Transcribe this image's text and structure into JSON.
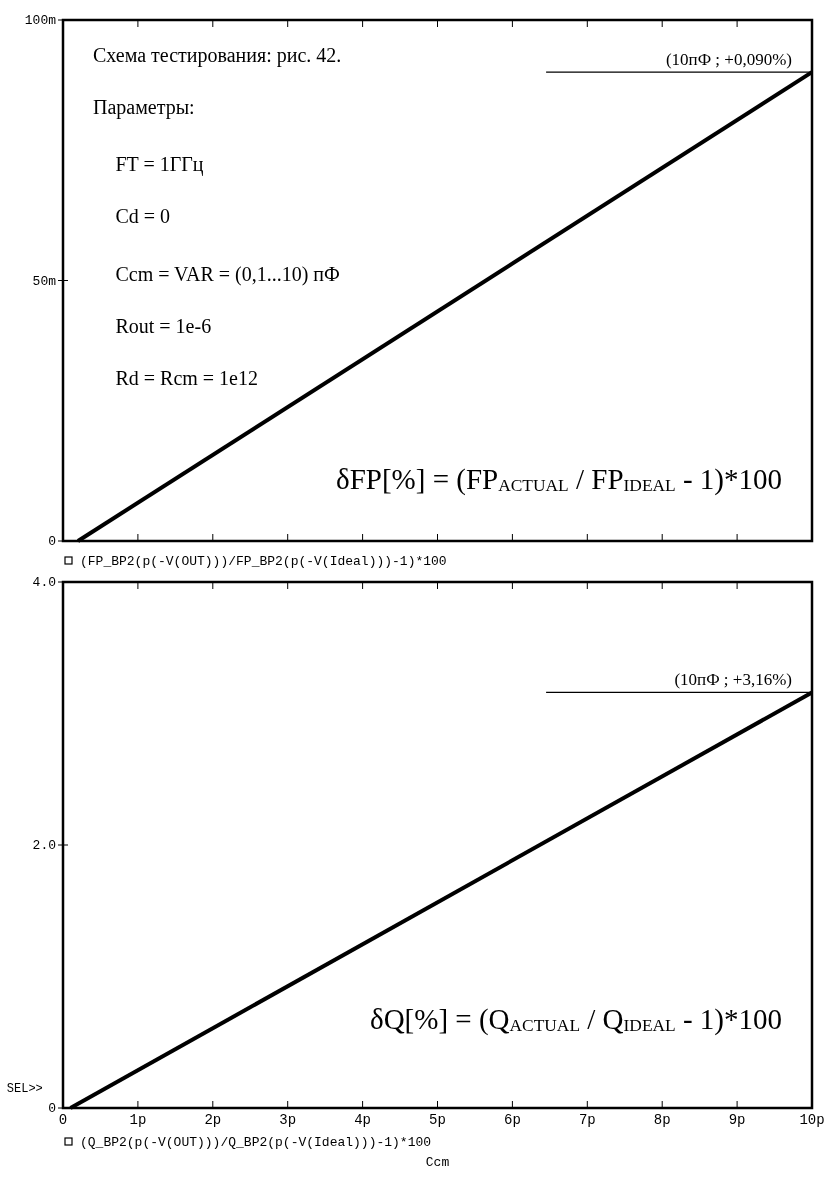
{
  "chart_data": [
    {
      "type": "line",
      "xlim": [
        0,
        10
      ],
      "xticks": [
        {
          "value": 0,
          "label": null
        },
        {
          "value": 1,
          "label": null
        },
        {
          "value": 2,
          "label": null
        },
        {
          "value": 3,
          "label": null
        },
        {
          "value": 4,
          "label": null
        },
        {
          "value": 5,
          "label": null
        },
        {
          "value": 6,
          "label": null
        },
        {
          "value": 7,
          "label": null
        },
        {
          "value": 8,
          "label": null
        },
        {
          "value": 9,
          "label": null
        },
        {
          "value": 10,
          "label": null
        }
      ],
      "ylim": [
        0,
        100
      ],
      "yticks": [
        {
          "value": 0,
          "label": "0"
        },
        {
          "value": 50,
          "label": "50m"
        },
        {
          "value": 100,
          "label": "100m"
        }
      ],
      "tick_labels": "y",
      "legend": "bottom",
      "series": [
        {
          "name": "(FP_BP2(p(-V(OUT)))/FP_BP2(p(-V(Ideal)))-1)*100",
          "color": "#000000",
          "x": [
            0.2,
            10
          ],
          "values": [
            0,
            90
          ]
        }
      ],
      "annotations": [
        "Схема тестирования: рис. 42.",
        "Параметры:",
        "FT = 1ГГц",
        "Cd = 0",
        "Ccm = VAR = (0,1...10) пФ",
        "Rout = 1e-6",
        "Rd = Rcm = 1e12",
        "δFP[%] = (FP$_{ACTUAL}$ / FP$_{IDEAL}$ - 1)*100",
        {
          "text": "(10пФ ; +0,090%)",
          "x": 10,
          "y": 90
        }
      ]
    },
    {
      "type": "line",
      "xlim": [
        0,
        10
      ],
      "xticks": [
        {
          "value": 0,
          "label": "0"
        },
        {
          "value": 1,
          "label": "1p"
        },
        {
          "value": 2,
          "label": "2p"
        },
        {
          "value": 3,
          "label": "3p"
        },
        {
          "value": 4,
          "label": "4p"
        },
        {
          "value": 5,
          "label": "5p"
        },
        {
          "value": 6,
          "label": "6p"
        },
        {
          "value": 7,
          "label": "7p"
        },
        {
          "value": 8,
          "label": "8p"
        },
        {
          "value": 9,
          "label": "9p"
        },
        {
          "value": 10,
          "label": "10p"
        }
      ],
      "ylim": [
        0,
        4
      ],
      "yticks": [
        {
          "value": 0,
          "label": "0"
        },
        {
          "value": 2,
          "label": "2.0"
        },
        {
          "value": 4,
          "label": "4.0"
        }
      ],
      "xlabel": "Ccm",
      "legend": "bottom",
      "series": [
        {
          "name": "(Q_BP2(p(-V(OUT)))/Q_BP2(p(-V(Ideal)))-1)*100",
          "color": "#000000",
          "x": [
            0.1,
            10
          ],
          "values": [
            0,
            3.16
          ]
        }
      ],
      "annotations": [
        "SEL>>",
        "δQ[%] = (Q$_{ACTUAL}$ / Q$_{IDEAL}$ - 1)*100",
        {
          "text": "(10пФ ; +3,16%)",
          "x": 10,
          "y": 3.16
        }
      ]
    }
  ]
}
